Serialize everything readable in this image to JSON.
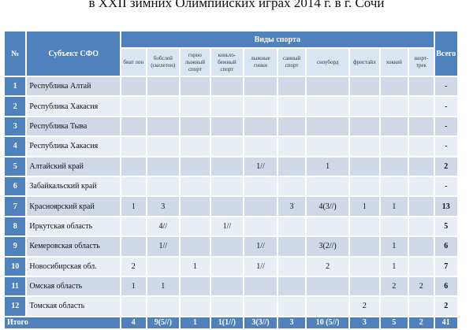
{
  "title": "в XXII зимних Олимпийских играх 2014 г. в г. Сочи",
  "header": {
    "num": "№",
    "subject": "Субъект СФО",
    "sports": "Виды спорта",
    "total": "Всего",
    "sub_columns": [
      "биат лон",
      "бобслей (скелетон)",
      "горно лыжный спорт",
      "коньхо-бежный спорт",
      "лыжные гонки",
      "санный спорт",
      "сноуборд",
      "фристайл",
      "хоккей",
      "шорт-трек"
    ]
  },
  "rows": [
    {
      "num": "1",
      "name": "Республика Алтай",
      "cells": [
        "",
        "",
        "",
        "",
        "",
        "",
        "",
        "",
        "",
        ""
      ],
      "total": "-"
    },
    {
      "num": "2",
      "name": "Республика Хакасия",
      "cells": [
        "",
        "",
        "",
        "",
        "",
        "",
        "",
        "",
        "",
        ""
      ],
      "total": "-"
    },
    {
      "num": "3",
      "name": "Республика Тыва",
      "cells": [
        "",
        "",
        "",
        "",
        "",
        "",
        "",
        "",
        "",
        ""
      ],
      "total": "-"
    },
    {
      "num": "4",
      "name": "Республика Хакасия",
      "cells": [
        "",
        "",
        "",
        "",
        "",
        "",
        "",
        "",
        "",
        ""
      ],
      "total": "-"
    },
    {
      "num": "5",
      "name": "Алтайский край",
      "cells": [
        "",
        "",
        "",
        "",
        "1//",
        "",
        "1",
        "",
        "",
        ""
      ],
      "total": "2"
    },
    {
      "num": "6",
      "name": "Забайкальский край",
      "cells": [
        "",
        "",
        "",
        "",
        "",
        "",
        "",
        "",
        "",
        ""
      ],
      "total": "-"
    },
    {
      "num": "7",
      "name": "Красноярский край",
      "cells": [
        "1",
        "3",
        "",
        "",
        "",
        "3",
        "4(3//)",
        "1",
        "1",
        ""
      ],
      "total": "13"
    },
    {
      "num": "8",
      "name": "Иркутская область",
      "cells": [
        "",
        "4//",
        "",
        "1//",
        "",
        "",
        "",
        "",
        "",
        ""
      ],
      "total": "5"
    },
    {
      "num": "9",
      "name": "Кемеровская область",
      "cells": [
        "",
        "1//",
        "",
        "",
        "1//",
        "",
        "3(2//)",
        "",
        "1",
        ""
      ],
      "total": "6"
    },
    {
      "num": "10",
      "name": "Новосибирская обл.",
      "cells": [
        "2",
        "",
        "1",
        "",
        "1//",
        "",
        "2",
        "",
        "1",
        ""
      ],
      "total": "7"
    },
    {
      "num": "11",
      "name": "Омская область",
      "cells": [
        "1",
        "1",
        "",
        "",
        "",
        "",
        "",
        "",
        "2",
        "2"
      ],
      "total": "6"
    },
    {
      "num": "12",
      "name": "Томская область",
      "cells": [
        "",
        "",
        "",
        "",
        "",
        "",
        "",
        "2",
        "",
        ""
      ],
      "total": "2"
    }
  ],
  "footer": {
    "label": "Итого",
    "cells": [
      "4",
      "9(5//)",
      "1",
      "1(1//)",
      "3(3//)",
      "3",
      "10 (5//)",
      "3",
      "5",
      "2"
    ],
    "total": "41"
  }
}
